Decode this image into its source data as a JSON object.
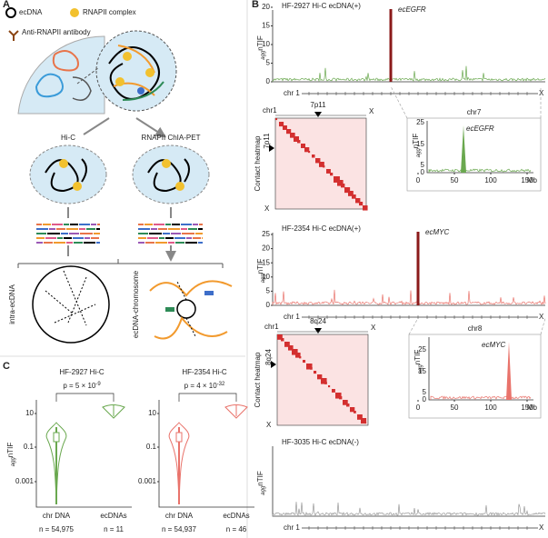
{
  "panel_a": {
    "label": "A",
    "legend": {
      "ecdna": "ecDNA",
      "rnapii": "RNAPII complex",
      "antibody": "Anti-RNAPII antibody"
    },
    "methods": [
      "Hi-C",
      "RNAPII ChIA-PET"
    ],
    "outcomes": [
      "intra-ecDNA",
      "ecDNA-chromosome"
    ]
  },
  "panel_b": {
    "label": "B",
    "y_label": {
      "sub": "agg",
      "main": "nTIF"
    },
    "chr_start": "chr 1",
    "chr_end": "X",
    "heatmap_label": "Contact heatmap",
    "heatmap_chr": "chr1",
    "mb": "Mb",
    "tracks": [
      {
        "title": "HF-2927 Hi-C ecDNA(+)",
        "yticks": [
          "0",
          "5",
          "10",
          "15",
          "20"
        ],
        "gene": "ecEGFR"
      },
      {
        "title": "HF-2354 Hi-C ecDNA(+)",
        "yticks": [
          "0",
          "5",
          "10",
          "15",
          "20",
          "25"
        ],
        "gene": "ecMYC"
      },
      {
        "title": "HF-3035 Hi-C ecDNA(-)"
      }
    ],
    "heatmaps": [
      {
        "band": "7p11",
        "end": "X"
      },
      {
        "band": "8q24",
        "end": "X"
      }
    ],
    "zooms": [
      {
        "chr": "chr7",
        "yticks": [
          "0",
          "5",
          "15",
          "25"
        ],
        "xticks": [
          "0",
          "50",
          "100",
          "150"
        ],
        "gene": "ecEGFR"
      },
      {
        "chr": "chr8",
        "yticks": [
          "0",
          "5",
          "15",
          "25"
        ],
        "xticks": [
          "0",
          "50",
          "100",
          "150"
        ],
        "gene": "ecMYC"
      }
    ]
  },
  "panel_c": {
    "label": "C",
    "yticks": [
      "0.001",
      "0.1",
      "10"
    ],
    "plots": [
      {
        "title": "HF-2927 Hi-C",
        "p": {
          "text": "p  = 5 × 10",
          "exp": "-9"
        },
        "groups": [
          "chr DNA",
          "ecDNAs"
        ],
        "n": [
          "n = 54,975",
          "n = 11"
        ],
        "color": "#6aa84f"
      },
      {
        "title": "HF-2354 Hi-C",
        "p": {
          "text": "p = 4 × 10",
          "exp": "-32"
        },
        "groups": [
          "chr DNA",
          "ecDNAs"
        ],
        "n": [
          "n = 54,937",
          "n = 46"
        ],
        "color": "#e9736b"
      }
    ]
  }
}
